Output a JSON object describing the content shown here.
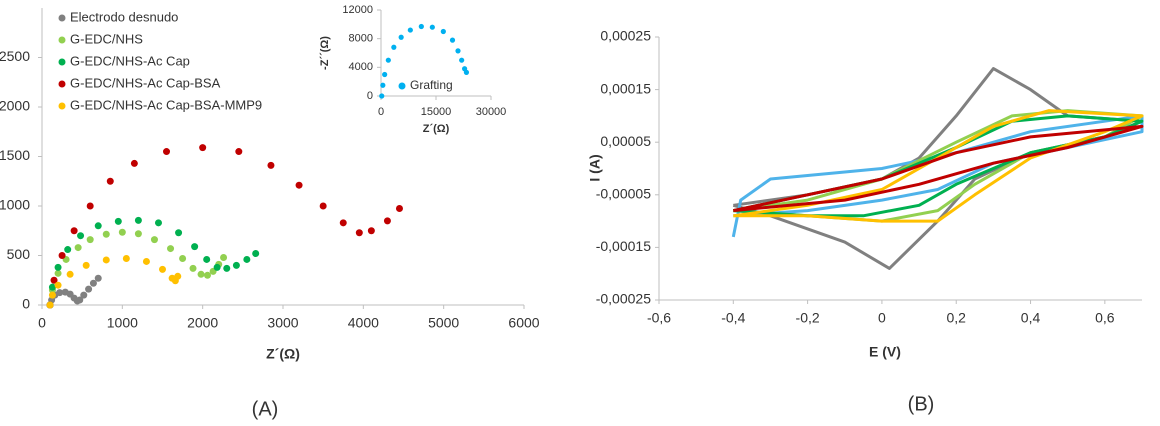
{
  "chart_data": [
    {
      "type": "scatter",
      "panel_label": "(A)",
      "x_label": "Z´(Ω)",
      "xlim": [
        0,
        6000
      ],
      "xticks": [
        0,
        1000,
        2000,
        3000,
        4000,
        5000,
        6000
      ],
      "ylim": [
        0,
        3000
      ],
      "yticks": [
        0,
        500,
        1000,
        1500,
        2000,
        2500
      ],
      "legend": "top-left",
      "series": [
        {
          "name": "Electrodo desnudo",
          "color": "#808080",
          "x": [
            100,
            120,
            160,
            220,
            290,
            350,
            400,
            440,
            470,
            520,
            580,
            640,
            700
          ],
          "y": [
            0,
            50,
            100,
            125,
            130,
            110,
            70,
            40,
            50,
            100,
            160,
            220,
            270
          ]
        },
        {
          "name": "G-EDC/NHS",
          "color": "#92d050",
          "x": [
            100,
            130,
            200,
            300,
            450,
            600,
            800,
            1000,
            1200,
            1400,
            1600,
            1750,
            1880,
            1980,
            2060,
            2130,
            2200,
            2260
          ],
          "y": [
            0,
            150,
            320,
            460,
            580,
            660,
            715,
            735,
            720,
            660,
            570,
            470,
            370,
            310,
            300,
            340,
            410,
            480
          ]
        },
        {
          "name": "G-EDC/NHS-Ac Cap",
          "color": "#00b050",
          "x": [
            100,
            130,
            200,
            320,
            480,
            700,
            950,
            1200,
            1450,
            1700,
            1900,
            2050,
            2180,
            2300,
            2420,
            2550,
            2660
          ],
          "y": [
            0,
            180,
            380,
            560,
            700,
            800,
            845,
            855,
            830,
            730,
            590,
            460,
            380,
            370,
            400,
            460,
            520
          ]
        },
        {
          "name": "G-EDC/NHS-Ac Cap-BSA",
          "color": "#c00000",
          "x": [
            100,
            150,
            250,
            400,
            600,
            850,
            1150,
            1550,
            2000,
            2450,
            2850,
            3200,
            3500,
            3750,
            3950,
            4100,
            4300,
            4450
          ],
          "y": [
            0,
            250,
            500,
            750,
            1000,
            1250,
            1430,
            1550,
            1590,
            1550,
            1410,
            1210,
            1000,
            830,
            730,
            750,
            850,
            975
          ]
        },
        {
          "name": "G-EDC/NHS-Ac Cap-BSA-MMP9",
          "color": "#ffc000",
          "x": [
            100,
            130,
            200,
            350,
            550,
            800,
            1050,
            1300,
            1500,
            1620,
            1660,
            1690
          ],
          "y": [
            0,
            100,
            200,
            310,
            400,
            455,
            470,
            440,
            360,
            270,
            245,
            290
          ]
        }
      ]
    },
    {
      "type": "scatter",
      "x_label": "Z´(Ω)",
      "y_label": "-Z´´(Ω)",
      "xlim": [
        0,
        30000
      ],
      "xticks": [
        0,
        15000,
        30000
      ],
      "ylim": [
        0,
        12000
      ],
      "yticks": [
        0,
        4000,
        8000,
        12000
      ],
      "legend": "bottom-right",
      "series": [
        {
          "name": "Grafting",
          "color": "#00b0f0",
          "x": [
            200,
            500,
            1000,
            2000,
            3500,
            5500,
            8000,
            11000,
            14000,
            17000,
            19500,
            21000,
            22000,
            22800,
            23300
          ],
          "y": [
            0,
            1500,
            3000,
            5000,
            6800,
            8200,
            9200,
            9700,
            9600,
            9000,
            7800,
            6300,
            5000,
            3800,
            3300
          ]
        }
      ]
    },
    {
      "type": "line",
      "panel_label": "(B)",
      "x_label": "E (V)",
      "y_label": "I (A)",
      "xlim": [
        -0.6,
        0.7
      ],
      "xticks": [
        {
          "value": -0.6,
          "label": "-0,6"
        },
        {
          "value": -0.4,
          "label": "-0,4"
        },
        {
          "value": -0.2,
          "label": "-0,2"
        },
        0,
        {
          "value": 0.2,
          "label": "0,2"
        },
        {
          "value": 0.4,
          "label": "0,4"
        },
        {
          "value": 0.6,
          "label": "0,6"
        }
      ],
      "ylim": [
        -0.00025,
        0.00025
      ],
      "yticks": [
        {
          "value": -0.00025,
          "label": "-0,00025"
        },
        {
          "value": -0.00015,
          "label": "-0,00015"
        },
        {
          "value": -5e-05,
          "label": "-0,00005"
        },
        {
          "value": 5e-05,
          "label": "0,00005"
        },
        {
          "value": 0.00015,
          "label": "0,00015"
        },
        {
          "value": 0.00025,
          "label": "0,00025"
        }
      ],
      "series": [
        {
          "color": "#808080",
          "x": [
            -0.4,
            -0.2,
            0,
            0.1,
            0.2,
            0.3,
            0.4,
            0.5,
            0.7,
            0.6,
            0.4,
            0.25,
            0.15,
            0.02,
            -0.1,
            -0.3,
            -0.4
          ],
          "y": [
            -7e-05,
            -5e-05,
            -2e-05,
            2e-05,
            0.0001,
            0.00019,
            0.00015,
            0.0001,
            9e-05,
            6e-05,
            3e-05,
            -2e-05,
            -0.0001,
            -0.00019,
            -0.00014,
            -9e-05,
            -7e-05
          ]
        },
        {
          "color": "#4fb3ea",
          "x": [
            -0.4,
            -0.38,
            -0.3,
            0,
            0.2,
            0.4,
            0.6,
            0.7,
            0.7,
            0.5,
            0.3,
            0.15,
            0,
            -0.2,
            -0.4
          ],
          "y": [
            -0.00013,
            -6e-05,
            -2e-05,
            0,
            3e-05,
            7e-05,
            9e-05,
            0.0001,
            7e-05,
            4e-05,
            1e-05,
            -4e-05,
            -6e-05,
            -8e-05,
            -9e-05
          ]
        },
        {
          "color": "#92d050",
          "x": [
            -0.4,
            -0.2,
            0,
            0.2,
            0.35,
            0.5,
            0.7,
            0.6,
            0.4,
            0.25,
            0.15,
            0,
            -0.2,
            -0.4
          ],
          "y": [
            -8e-05,
            -6e-05,
            -2e-05,
            5e-05,
            0.0001,
            0.00011,
            0.0001,
            6e-05,
            3e-05,
            -3e-05,
            -8e-05,
            -0.0001,
            -9e-05,
            -8e-05
          ]
        },
        {
          "color": "#00b050",
          "x": [
            -0.4,
            -0.2,
            0,
            0.2,
            0.35,
            0.5,
            0.7,
            0.6,
            0.4,
            0.2,
            0.1,
            -0.05,
            -0.2,
            -0.4
          ],
          "y": [
            -8e-05,
            -5e-05,
            -2e-05,
            4e-05,
            9e-05,
            0.0001,
            9e-05,
            6e-05,
            3e-05,
            -3e-05,
            -7e-05,
            -9e-05,
            -9e-05,
            -8e-05
          ]
        },
        {
          "color": "#ffc000",
          "x": [
            -0.4,
            -0.2,
            0,
            0.15,
            0.3,
            0.45,
            0.7,
            0.6,
            0.4,
            0.25,
            0.15,
            0,
            -0.2,
            -0.4
          ],
          "y": [
            -9e-05,
            -7e-05,
            -4e-05,
            2e-05,
            8e-05,
            0.00011,
            0.0001,
            7e-05,
            2e-05,
            -5e-05,
            -0.0001,
            -0.0001,
            -9e-05,
            -9e-05
          ]
        },
        {
          "color": "#c00000",
          "x": [
            -0.4,
            -0.2,
            0,
            0.2,
            0.4,
            0.7,
            0.5,
            0.3,
            0.1,
            -0.1,
            -0.4
          ],
          "y": [
            -8e-05,
            -5e-05,
            -2e-05,
            3e-05,
            6e-05,
            8e-05,
            4e-05,
            1e-05,
            -3e-05,
            -6e-05,
            -8e-05
          ]
        }
      ]
    }
  ]
}
